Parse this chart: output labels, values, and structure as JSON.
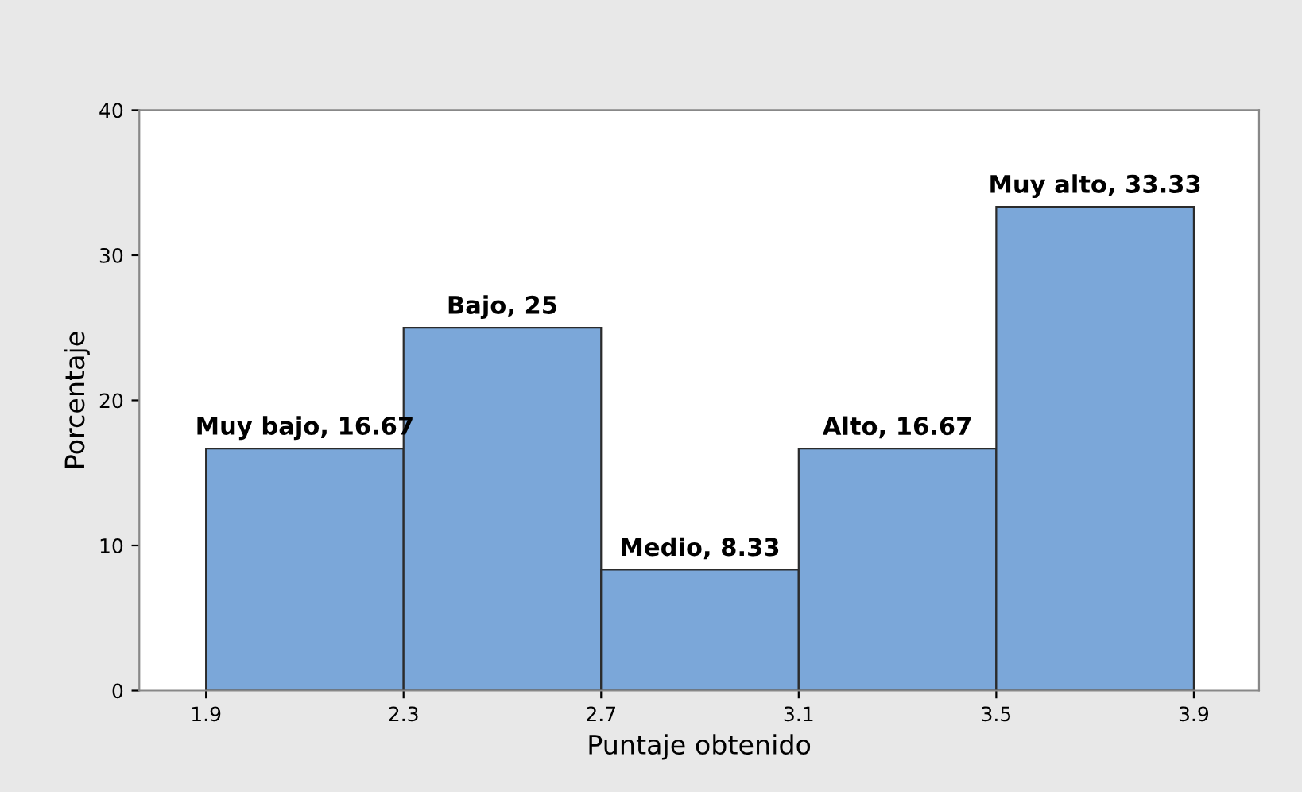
{
  "chart_data": {
    "type": "histogram",
    "xlabel": "Puntaje obtenido",
    "ylabel": "Porcentaje",
    "bins": [
      1.9,
      2.3,
      2.7,
      3.1,
      3.5,
      3.9
    ],
    "values": [
      16.67,
      25,
      8.33,
      16.67,
      33.33
    ],
    "value_labels": [
      "Muy bajo, 16.67",
      "Bajo, 25",
      "Medio, 8.33",
      "Alto, 16.67",
      "Muy alto, 33.33"
    ],
    "color": "#7ba7d9",
    "xlim": [
      1.765,
      4.032
    ],
    "xticks": [
      1.9,
      2.3,
      2.7,
      3.1,
      3.5,
      3.9
    ],
    "ylim": [
      0,
      40
    ],
    "yticks": [
      0,
      10,
      20,
      30,
      40
    ],
    "grid": false,
    "legend": false
  }
}
